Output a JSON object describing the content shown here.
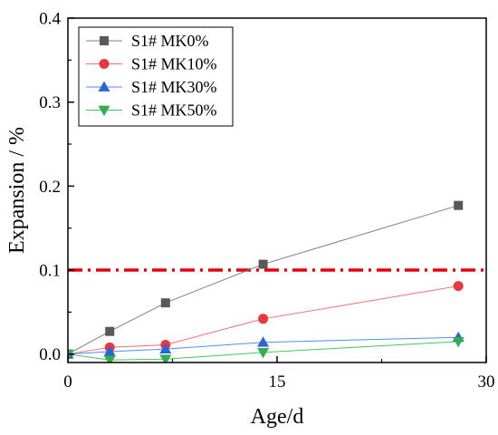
{
  "chart_data": {
    "type": "line",
    "xlabel": "Age/d",
    "ylabel": "Expansion / %",
    "xlim": [
      0,
      30
    ],
    "ylim": [
      -0.01,
      0.4
    ],
    "xticks": [
      0,
      15,
      30
    ],
    "yticks": [
      0.0,
      0.1,
      0.2,
      0.3,
      0.4
    ],
    "x": [
      0,
      3,
      7,
      14,
      28
    ],
    "series": [
      {
        "name": "S1# MK0%",
        "values": [
          0.0,
          0.027,
          0.061,
          0.107,
          0.177
        ],
        "color": "#595959",
        "line_color": "#7f7f7f",
        "marker": "square"
      },
      {
        "name": "S1# MK10%",
        "values": [
          0.0,
          0.008,
          0.011,
          0.042,
          0.081
        ],
        "color": "#e8383d",
        "line_color": "#ff6b6b",
        "marker": "circle"
      },
      {
        "name": "S1# MK30%",
        "values": [
          0.0,
          0.003,
          0.006,
          0.014,
          0.02
        ],
        "color": "#2b63d9",
        "line_color": "#4d8ef7",
        "marker": "triangle-up"
      },
      {
        "name": "S1# MK50%",
        "values": [
          0.0,
          -0.007,
          -0.006,
          0.002,
          0.015
        ],
        "color": "#2fb04d",
        "line_color": "#48c35e",
        "marker": "triangle-down"
      }
    ],
    "reference_line": {
      "y": 0.1,
      "color": "#e8000b",
      "style": "dash-dot"
    },
    "legend": {
      "position": "top-left"
    },
    "grid": false
  }
}
